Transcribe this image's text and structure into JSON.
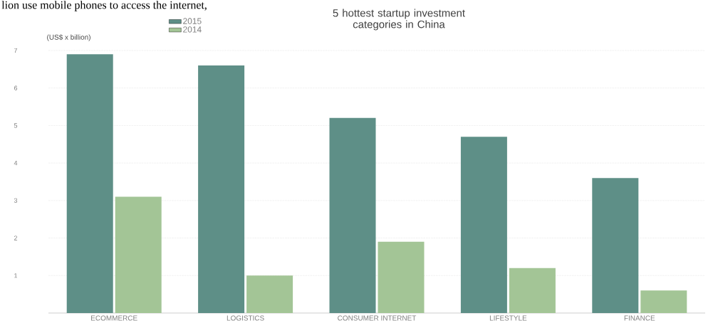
{
  "chart_data": {
    "type": "bar",
    "title": "5 hottest startup investment categories in China",
    "ylabel": "(US$ x billion)",
    "annotations": [
      "lion use mobile phones to access the internet,"
    ],
    "categories": [
      "ECOMMERCE",
      "LOGISTICS",
      "CONSUMER INTERNET",
      "LIFESTYLE",
      "FINANCE"
    ],
    "series": [
      {
        "name": "2015",
        "color": "#5e8f87",
        "values": [
          6.9,
          6.6,
          5.2,
          4.7,
          3.6
        ]
      },
      {
        "name": "2014",
        "color": "#a3c596",
        "values": [
          3.1,
          1.0,
          1.9,
          1.2,
          0.6
        ]
      }
    ],
    "ylim": [
      0,
      7
    ],
    "yticks": [
      1,
      2,
      3,
      4,
      5,
      6,
      7
    ],
    "grid": "y",
    "legend": "top left"
  }
}
